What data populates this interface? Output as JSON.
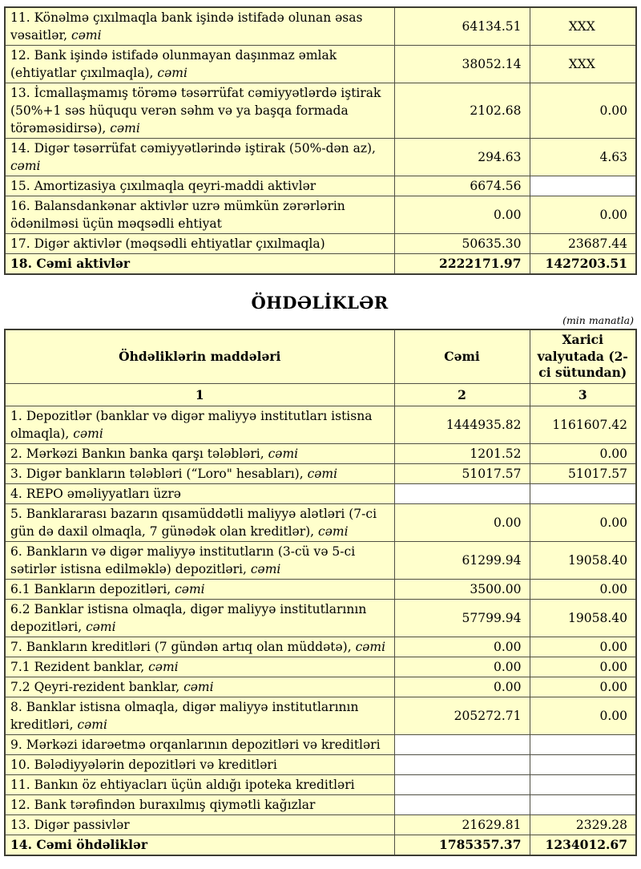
{
  "colors": {
    "cell_bg": "#ffffcc",
    "empty_cell_bg": "#ffffff",
    "border": "#505044",
    "text": "#000000"
  },
  "section_title": "ÖHDƏLİKLƏR",
  "unit_note": "(min manatla)",
  "assets_table": {
    "rows": [
      {
        "label": "11. Könəlmə çıxılmaqla bank işində istifadə olunan əsas vəsaitlər,",
        "suffix": "cəmi",
        "total": "64134.51",
        "foreign": "XXX",
        "foreign_center": true
      },
      {
        "label": "12. Bank işində istifadə olunmayan daşınmaz əmlak (ehtiyatlar çıxılmaqla),",
        "suffix": "cəmi",
        "total": "38052.14",
        "foreign": "XXX",
        "foreign_center": true
      },
      {
        "label": "13. İcmallaşmamış törəmə təsərrüfat cəmiyyətlərdə iştirak (50%+1 səs hüququ verən səhm və ya başqa formada törəməsidirsə),",
        "suffix": "cəmi",
        "total": "2102.68",
        "foreign": "0.00"
      },
      {
        "label": "14. Digər təsərrüfat cəmiyyətlərində iştirak (50%-dən az),",
        "suffix": "cəmi",
        "total": "294.63",
        "foreign": "4.63"
      },
      {
        "label": "15. Amortizasiya çıxılmaqla qeyri-maddi aktivlər",
        "total": "6674.56",
        "foreign": "",
        "foreign_white": true
      },
      {
        "label": "16. Balansdankənar aktivlər uzrə mümkün zərərlərin ödənilməsi üçün məqsədli ehtiyat",
        "total": "0.00",
        "foreign": "0.00"
      },
      {
        "label": "17. Digər aktivlər (məqsədli ehtiyatlar çıxılmaqla)",
        "total": "50635.30",
        "foreign": "23687.44"
      },
      {
        "label": "18. Cəmi aktivlər",
        "total": "2222171.97",
        "foreign": "1427203.51",
        "bold": true
      }
    ]
  },
  "liabilities_table": {
    "headers": {
      "items": "Öhdəliklərin maddələri",
      "total": "Cəmi",
      "foreign": "Xarici valyutada (2-ci sütundan)"
    },
    "index_row": [
      "1",
      "2",
      "3"
    ],
    "rows": [
      {
        "label": "1. Depozitlər (banklar və digər maliyyə institutları istisna olmaqla),",
        "suffix": "cəmi",
        "total": "1444935.82",
        "foreign": "1161607.42"
      },
      {
        "label": "2. Mərkəzi Bankın banka qarşı tələbləri,",
        "suffix": "cəmi",
        "total": "1201.52",
        "foreign": "0.00"
      },
      {
        "label": "3. Digər bankların tələbləri (“Loro\" hesabları),",
        "suffix": "cəmi",
        "total": "51017.57",
        "foreign": "51017.57"
      },
      {
        "label": "4. REPO əməliyyatları  üzrə",
        "total": "",
        "foreign": "",
        "white_cells": true
      },
      {
        "label": "5. Banklararası bazarın qısamüddətli maliyyə alətləri (7-ci gün də daxil olmaqla, 7 günədək olan kreditlər),",
        "suffix": "cəmi",
        "total": "0.00",
        "foreign": "0.00"
      },
      {
        "label": "6. Bankların və digər maliyyə institutların (3-cü və 5-ci sətirlər istisna edilməklə) depozitləri,",
        "suffix": "cəmi",
        "total": "61299.94",
        "foreign": "19058.40"
      },
      {
        "label": "6.1  Bankların depozitləri,",
        "suffix": "cəmi",
        "total": "3500.00",
        "foreign": "0.00"
      },
      {
        "label": "6.2 Banklar istisna olmaqla, digər maliyyə institutlarının depozitləri,",
        "suffix": "cəmi",
        "total": "57799.94",
        "foreign": "19058.40"
      },
      {
        "label": "7. Bankların kreditləri (7 gündən artıq olan müddətə),",
        "suffix": "cəmi",
        "total": "0.00",
        "foreign": "0.00"
      },
      {
        "label": "7.1 Rezident banklar,",
        "suffix": "cəmi",
        "total": "0.00",
        "foreign": "0.00"
      },
      {
        "label": "7.2 Qeyri-rezident banklar,",
        "suffix": "cəmi",
        "total": "0.00",
        "foreign": "0.00"
      },
      {
        "label": "8. Banklar istisna olmaqla, digər maliyyə institutlarının kreditləri,",
        "suffix": "cəmi",
        "total": "205272.71",
        "foreign": "0.00"
      },
      {
        "label": "9. Mərkəzi idarəetmə orqanlarının depozitləri və kreditləri",
        "total": "",
        "foreign": "",
        "white_cells": true
      },
      {
        "label": "10. Bələdiyyələrin depozitləri və kreditləri",
        "total": "",
        "foreign": "",
        "white_cells": true
      },
      {
        "label": "11. Bankın öz ehtiyacları üçün aldığı ipoteka kreditləri",
        "total": "",
        "foreign": "",
        "white_cells": true
      },
      {
        "label": "12. Bank tərəfindən buraxılmış qiymətli kağızlar",
        "total": "",
        "foreign": "",
        "white_cells": true
      },
      {
        "label": "13. Digər passivlər",
        "total": "21629.81",
        "foreign": "2329.28"
      },
      {
        "label": "14. Cəmi öhdəliklər",
        "total": "1785357.37",
        "foreign": "1234012.67",
        "bold": true
      }
    ]
  }
}
